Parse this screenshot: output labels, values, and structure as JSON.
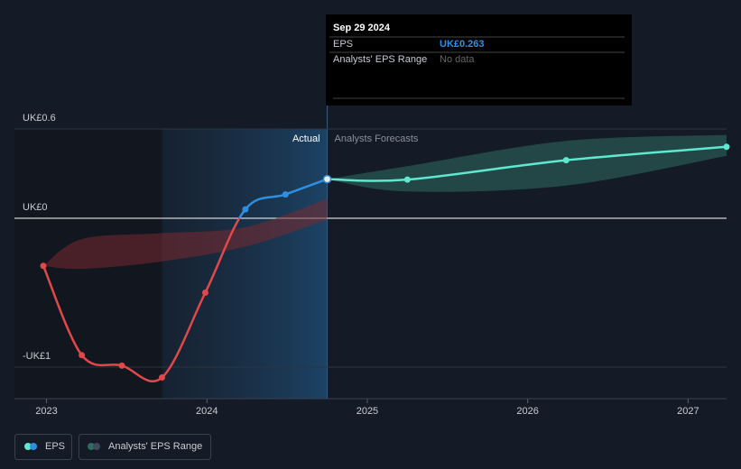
{
  "chart_data": {
    "type": "line",
    "ylim": [
      -1.2,
      0.6
    ],
    "yticks": [
      {
        "value": 0.6,
        "label": "UK£0.6"
      },
      {
        "value": 0,
        "label": "UK£0"
      },
      {
        "value": -1,
        "label": "-UK£1"
      }
    ],
    "xlim": [
      2022.8,
      2027.24
    ],
    "xticks": [
      2023,
      2024,
      2025,
      2026,
      2027
    ],
    "series": [
      {
        "name": "EPS",
        "color": "#2e8fe0",
        "negative_color": "#e0484a",
        "x": [
          2022.98,
          2023.22,
          2023.47,
          2023.72,
          2023.99,
          2024.24,
          2024.49,
          2024.75
        ],
        "values": [
          -0.32,
          -0.92,
          -0.99,
          -1.07,
          -0.5,
          0.06,
          0.16,
          0.263
        ]
      }
    ],
    "forecast": {
      "color": "#5ee8d0",
      "x": [
        2024.75,
        2025.25,
        2026.24,
        2027.24
      ],
      "values": [
        0.263,
        0.26,
        0.39,
        0.48
      ]
    },
    "ranges": {
      "name": "Analysts' EPS Range",
      "color": "#2f6b62",
      "past_color": "#7a2a30",
      "past": {
        "x": [
          2022.98,
          2023.22,
          2023.72,
          2024.24,
          2024.75
        ],
        "low": [
          -0.32,
          -0.34,
          -0.29,
          -0.19,
          -0.01
        ],
        "high": [
          -0.32,
          -0.14,
          -0.1,
          -0.06,
          0.13
        ]
      },
      "future": {
        "x": [
          2024.75,
          2025.25,
          2026.24,
          2027.24
        ],
        "low": [
          0.263,
          0.18,
          0.22,
          0.42
        ],
        "high": [
          0.263,
          0.35,
          0.52,
          0.56
        ]
      }
    },
    "labels": {
      "actual": "Actual",
      "forecast": "Analysts Forecasts"
    },
    "tooltip": {
      "date": "Sep 29 2024",
      "rows": [
        {
          "label": "EPS",
          "value": "UK£0.263"
        },
        {
          "label": "Analysts' EPS Range",
          "value": "No data"
        }
      ]
    }
  }
}
